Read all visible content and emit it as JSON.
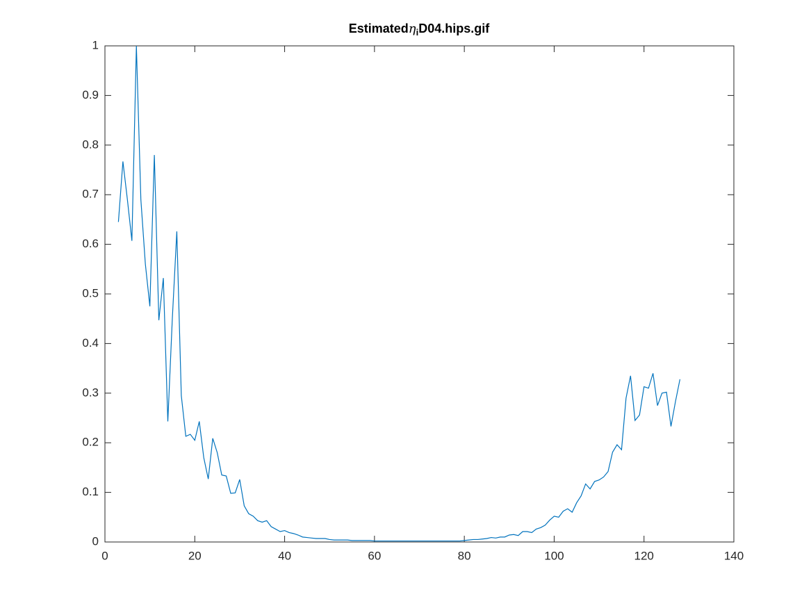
{
  "chart_data": {
    "type": "line",
    "title": [
      "Estimated",
      "η",
      "i",
      "D04.hips.gif"
    ],
    "color": "#0072bd",
    "x": [
      3,
      4,
      5,
      6,
      7,
      8,
      9,
      10,
      11,
      12,
      13,
      14,
      15,
      16,
      17,
      18,
      19,
      20,
      21,
      22,
      23,
      24,
      25,
      26,
      27,
      28,
      29,
      30,
      31,
      32,
      33,
      34,
      35,
      36,
      37,
      38,
      39,
      40,
      41,
      42,
      43,
      44,
      45,
      46,
      47,
      48,
      49,
      50,
      51,
      52,
      53,
      54,
      55,
      56,
      57,
      58,
      59,
      60,
      61,
      62,
      63,
      64,
      65,
      66,
      67,
      68,
      69,
      70,
      71,
      72,
      73,
      74,
      75,
      76,
      77,
      78,
      79,
      80,
      81,
      82,
      83,
      84,
      85,
      86,
      87,
      88,
      89,
      90,
      91,
      92,
      93,
      94,
      95,
      96,
      97,
      98,
      99,
      100,
      101,
      102,
      103,
      104,
      105,
      106,
      107,
      108,
      109,
      110,
      111,
      112,
      113,
      114,
      115,
      116,
      117,
      118,
      119,
      120,
      121,
      122,
      123,
      124,
      125,
      126,
      127,
      128
    ],
    "values": [
      0.645,
      0.767,
      0.69,
      0.607,
      1.0,
      0.69,
      0.56,
      0.475,
      0.78,
      0.447,
      0.532,
      0.243,
      0.45,
      0.626,
      0.295,
      0.213,
      0.217,
      0.205,
      0.243,
      0.17,
      0.127,
      0.209,
      0.18,
      0.135,
      0.133,
      0.098,
      0.099,
      0.126,
      0.073,
      0.057,
      0.052,
      0.043,
      0.04,
      0.043,
      0.031,
      0.026,
      0.021,
      0.023,
      0.019,
      0.017,
      0.014,
      0.01,
      0.009,
      0.008,
      0.007,
      0.007,
      0.007,
      0.005,
      0.004,
      0.004,
      0.004,
      0.004,
      0.003,
      0.003,
      0.003,
      0.003,
      0.003,
      0.002,
      0.002,
      0.002,
      0.002,
      0.002,
      0.002,
      0.002,
      0.002,
      0.002,
      0.002,
      0.002,
      0.002,
      0.002,
      0.002,
      0.002,
      0.002,
      0.002,
      0.002,
      0.002,
      0.002,
      0.003,
      0.004,
      0.005,
      0.005,
      0.006,
      0.007,
      0.009,
      0.008,
      0.01,
      0.01,
      0.014,
      0.015,
      0.013,
      0.021,
      0.021,
      0.019,
      0.026,
      0.029,
      0.034,
      0.044,
      0.052,
      0.05,
      0.062,
      0.067,
      0.06,
      0.079,
      0.093,
      0.117,
      0.107,
      0.122,
      0.125,
      0.131,
      0.142,
      0.181,
      0.196,
      0.186,
      0.29,
      0.335,
      0.245,
      0.256,
      0.313,
      0.31,
      0.34,
      0.275,
      0.3,
      0.302,
      0.233,
      0.283,
      0.328
    ],
    "xlim": [
      0,
      140
    ],
    "xticks": [
      0,
      20,
      40,
      60,
      80,
      100,
      120,
      140
    ],
    "ylim": [
      0,
      1
    ],
    "yticks": [
      0,
      0.1,
      0.2,
      0.3,
      0.4,
      0.5,
      0.6,
      0.7,
      0.8,
      0.9,
      1
    ],
    "grid": false
  }
}
